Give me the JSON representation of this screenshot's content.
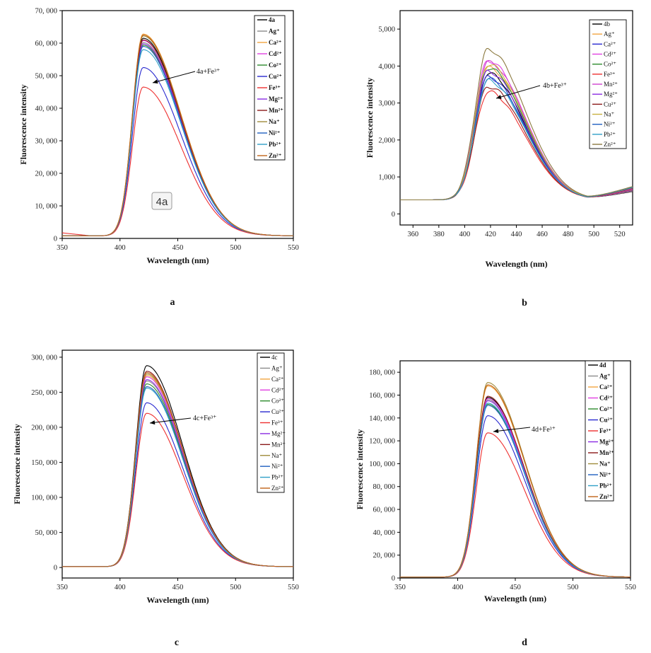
{
  "figure": {
    "panel_labels": [
      "a",
      "b",
      "c",
      "d"
    ]
  },
  "chart_data": [
    {
      "type": "line",
      "panel": "a",
      "xlabel": "Wavelength (nm)",
      "ylabel": "Fluorescence intensity",
      "xlim": [
        350,
        550
      ],
      "ylim": [
        0,
        70000
      ],
      "x_ticks": [
        350,
        400,
        450,
        500,
        550
      ],
      "y_ticks": [
        0,
        10000,
        20000,
        30000,
        40000,
        50000,
        60000,
        70000
      ],
      "y_tick_labels": [
        "0",
        "10, 000",
        "20, 000",
        "30, 000",
        "40, 000",
        "50, 000",
        "60, 000",
        "70, 000"
      ],
      "annotation": "4a+Fe³⁺",
      "badge": "4a",
      "legend_bold": true,
      "grid": false,
      "legend_position": "top-right",
      "series": [
        {
          "name": "4a",
          "color": "#000000",
          "peak": 61500
        },
        {
          "name": "Ag⁺",
          "color": "#8c8c8c",
          "peak": 60200
        },
        {
          "name": "Ca²⁺",
          "color": "#f2a541",
          "peak": 62800
        },
        {
          "name": "Cd²⁺",
          "color": "#e040e0",
          "peak": 60800
        },
        {
          "name": "Co²⁺",
          "color": "#2e8b2e",
          "peak": 59400
        },
        {
          "name": "Cu²⁺",
          "color": "#2a2ad0",
          "peak": 52500
        },
        {
          "name": "Fe³⁺",
          "color": "#ee3030",
          "peak": 46500
        },
        {
          "name": "Mg²⁺",
          "color": "#8a2be2",
          "peak": 59800
        },
        {
          "name": "Mn²⁺",
          "color": "#8b1a1a",
          "peak": 61000
        },
        {
          "name": "Na⁺",
          "color": "#a08c3c",
          "peak": 62200
        },
        {
          "name": "Ni²⁺",
          "color": "#2060c0",
          "peak": 59000
        },
        {
          "name": "Pb²⁺",
          "color": "#30a0c8",
          "peak": 58000
        },
        {
          "name": "Zn²⁺",
          "color": "#c06418",
          "peak": 62500
        }
      ]
    },
    {
      "type": "line",
      "panel": "b",
      "xlabel": "Wavelength (nm)",
      "ylabel": "Fluorescence intensity",
      "xlim": [
        350,
        530
      ],
      "ylim": [
        -300,
        5500
      ],
      "x_ticks": [
        360,
        380,
        400,
        420,
        440,
        460,
        480,
        500,
        520
      ],
      "y_ticks": [
        0,
        1000,
        2000,
        3000,
        4000,
        5000
      ],
      "y_tick_labels": [
        "0",
        "1,000",
        "2,000",
        "3,000",
        "4,000",
        "5,000"
      ],
      "annotation": "4b+Fe³⁺",
      "legend_bold": false,
      "grid": false,
      "legend_position": "top-right",
      "series": [
        {
          "name": "4b",
          "color": "#000000",
          "peak": 3800
        },
        {
          "name": "Ag⁺",
          "color": "#f2a541",
          "peak": 3950
        },
        {
          "name": "Ca²⁺",
          "color": "#2a2ad0",
          "peak": 3700
        },
        {
          "name": "Cd²⁺",
          "color": "#e040e0",
          "peak": 4150
        },
        {
          "name": "Co²⁺",
          "color": "#2e8b2e",
          "peak": 3950
        },
        {
          "name": "Fe³⁺",
          "color": "#ee3030",
          "peak": 3300
        },
        {
          "name": "Mn²⁺",
          "color": "#d040d0",
          "peak": 4100
        },
        {
          "name": "Mg²⁺",
          "color": "#8a2be2",
          "peak": 3850
        },
        {
          "name": "Cu²⁺",
          "color": "#8b1a1a",
          "peak": 3450
        },
        {
          "name": "Na⁺",
          "color": "#c8b040",
          "peak": 4050
        },
        {
          "name": "Ni²⁺",
          "color": "#2060c0",
          "peak": 3650
        },
        {
          "name": "Pb²⁺",
          "color": "#30a0c8",
          "peak": 3600
        },
        {
          "name": "Zn²⁺",
          "color": "#8c7a40",
          "peak": 4450
        }
      ]
    },
    {
      "type": "line",
      "panel": "c",
      "xlabel": "Wavelength (nm)",
      "ylabel": "Fluorescence intensity",
      "xlim": [
        350,
        550
      ],
      "ylim": [
        -15000,
        310000
      ],
      "x_ticks": [
        350,
        400,
        450,
        500,
        550
      ],
      "y_ticks": [
        0,
        50000,
        100000,
        150000,
        200000,
        250000,
        300000
      ],
      "y_tick_labels": [
        "0",
        "50, 000",
        "100, 000",
        "150, 000",
        "200, 000",
        "250, 000",
        "300, 000"
      ],
      "annotation": "4c+Fe³⁺",
      "legend_bold": false,
      "grid": false,
      "legend_position": "top-right",
      "series": [
        {
          "name": "4c",
          "color": "#000000",
          "peak": 288000
        },
        {
          "name": "Ag⁺",
          "color": "#8c8c8c",
          "peak": 266000
        },
        {
          "name": "Ca²⁺",
          "color": "#f2a541",
          "peak": 274000
        },
        {
          "name": "Cd²⁺",
          "color": "#e040e0",
          "peak": 272000
        },
        {
          "name": "Co²⁺",
          "color": "#2e8b2e",
          "peak": 262000
        },
        {
          "name": "Cu²⁺",
          "color": "#2a2ad0",
          "peak": 235000
        },
        {
          "name": "Fe³⁺",
          "color": "#ee3030",
          "peak": 220000
        },
        {
          "name": "Mg²⁺",
          "color": "#8a2be2",
          "peak": 268000
        },
        {
          "name": "Mn²⁺",
          "color": "#8b1a1a",
          "peak": 280000
        },
        {
          "name": "Na⁺",
          "color": "#a08c3c",
          "peak": 276000
        },
        {
          "name": "Ni²⁺",
          "color": "#2060c0",
          "peak": 258000
        },
        {
          "name": "Pb²⁺",
          "color": "#30a0c8",
          "peak": 256000
        },
        {
          "name": "Zn²⁺",
          "color": "#c06418",
          "peak": 278000
        }
      ]
    },
    {
      "type": "line",
      "panel": "d",
      "xlabel": "Wavelength (nm)",
      "ylabel": "Fluorescence intensity",
      "xlim": [
        350,
        550
      ],
      "ylim": [
        0,
        190000
      ],
      "x_ticks": [
        350,
        400,
        450,
        500,
        550
      ],
      "y_ticks": [
        0,
        20000,
        40000,
        60000,
        80000,
        100000,
        120000,
        140000,
        160000,
        180000
      ],
      "y_tick_labels": [
        "0",
        "20, 000",
        "40, 000",
        "60, 000",
        "80, 000",
        "100, 000",
        "120, 000",
        "140, 000",
        "160, 000",
        "180, 000"
      ],
      "annotation": "4d+Fe³⁺",
      "legend_bold": true,
      "grid": false,
      "legend_position": "top-right",
      "series": [
        {
          "name": "4d",
          "color": "#000000",
          "peak": 158000
        },
        {
          "name": "Ag⁺",
          "color": "#8c8c8c",
          "peak": 156000
        },
        {
          "name": "Ca²⁺",
          "color": "#f2a541",
          "peak": 168000
        },
        {
          "name": "Cd²⁺",
          "color": "#e040e0",
          "peak": 157000
        },
        {
          "name": "Co²⁺",
          "color": "#2e8b2e",
          "peak": 152000
        },
        {
          "name": "Cu²⁺",
          "color": "#2a2ad0",
          "peak": 142000
        },
        {
          "name": "Fe³⁺",
          "color": "#ee3030",
          "peak": 127000
        },
        {
          "name": "Mg²⁺",
          "color": "#8a2be2",
          "peak": 155000
        },
        {
          "name": "Mn²⁺",
          "color": "#8b1a1a",
          "peak": 159000
        },
        {
          "name": "Na⁺",
          "color": "#a08c3c",
          "peak": 171000
        },
        {
          "name": "Ni²⁺",
          "color": "#2060c0",
          "peak": 151000
        },
        {
          "name": "Pb²⁺",
          "color": "#30a0c8",
          "peak": 153000
        },
        {
          "name": "Zn²⁺",
          "color": "#c06418",
          "peak": 169000
        }
      ]
    }
  ]
}
